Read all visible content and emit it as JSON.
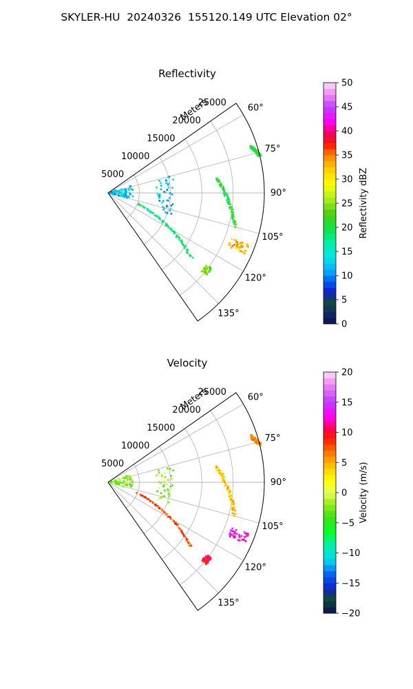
{
  "title": "SKYLER-HU  20240326  155120.149 UTC Elevation 02°",
  "chart_data": [
    {
      "type": "polar-sector",
      "title": "Reflectivity",
      "range_label": "Meters",
      "range_ticks": [
        5000,
        10000,
        15000,
        20000,
        25000
      ],
      "range_max": 25000,
      "azimuth_range_deg": [
        55,
        145
      ],
      "azimuth_ticks": [
        "60°",
        "75°",
        "90°",
        "105°",
        "120°",
        "135°"
      ],
      "grid": true,
      "colorbar": {
        "label": "Reflectivity dBZ",
        "min": 0,
        "max": 50,
        "ticks": [
          0,
          5,
          10,
          15,
          20,
          25,
          30,
          35,
          40,
          45,
          50
        ],
        "colormap": "pyart_HomeyerRainbow"
      },
      "echo_features": [
        {
          "kind": "near-field clutter cluster",
          "azimuth_deg": [
            70,
            105
          ],
          "range_m": [
            0,
            4000
          ],
          "value_dbz": 12
        },
        {
          "kind": "arc of echoes",
          "azimuth_deg": [
            75,
            110
          ],
          "range_m": [
            8000,
            10500
          ],
          "value_dbz": 12
        },
        {
          "kind": "diagonal line",
          "azimuth_deg": [
            110,
            128
          ],
          "range_m": [
            5000,
            17000
          ],
          "value_dbz": 18
        },
        {
          "kind": "line of echoes",
          "azimuth_deg": [
            82,
            105
          ],
          "range_m": [
            17500,
            21000
          ],
          "value_dbz": 21
        },
        {
          "kind": "strong cell",
          "azimuth_deg": [
            110,
            114
          ],
          "range_m": [
            21000,
            24000
          ],
          "value_dbz": 33
        },
        {
          "kind": "edge line",
          "azimuth_deg": [
            72,
            76
          ],
          "range_m": [
            24000,
            25000
          ],
          "value_dbz": 21
        },
        {
          "kind": "small cell",
          "azimuth_deg": [
            126,
            130
          ],
          "range_m": [
            19500,
            20500
          ],
          "value_dbz": 24
        }
      ]
    },
    {
      "type": "polar-sector",
      "title": "Velocity",
      "range_label": "Meters",
      "range_ticks": [
        5000,
        10000,
        15000,
        20000,
        25000
      ],
      "range_max": 25000,
      "azimuth_range_deg": [
        55,
        145
      ],
      "azimuth_ticks": [
        "60°",
        "75°",
        "90°",
        "105°",
        "120°",
        "135°"
      ],
      "grid": true,
      "colorbar": {
        "label": "Velocity (m/s)",
        "min": -20,
        "max": 20,
        "ticks": [
          -20,
          -15,
          -10,
          -5,
          0,
          5,
          10,
          15,
          20
        ],
        "colormap": "pyart_BuDRd18"
      },
      "echo_features": [
        {
          "kind": "near-field clutter cluster",
          "azimuth_deg": [
            70,
            105
          ],
          "range_m": [
            0,
            4000
          ],
          "value_ms": -2
        },
        {
          "kind": "arc of echoes",
          "azimuth_deg": [
            75,
            110
          ],
          "range_m": [
            8000,
            10500
          ],
          "value_ms": -2
        },
        {
          "kind": "diagonal line",
          "azimuth_deg": [
            110,
            128
          ],
          "range_m": [
            5000,
            17000
          ],
          "value_ms": 8
        },
        {
          "kind": "line of echoes",
          "azimuth_deg": [
            82,
            105
          ],
          "range_m": [
            17500,
            21000
          ],
          "value_ms": 4
        },
        {
          "kind": "strong cell",
          "azimuth_deg": [
            110,
            114
          ],
          "range_m": [
            21000,
            24000
          ],
          "value_ms": 13
        },
        {
          "kind": "edge line",
          "azimuth_deg": [
            72,
            76
          ],
          "range_m": [
            24000,
            25000
          ],
          "value_ms": 6
        },
        {
          "kind": "small cell",
          "azimuth_deg": [
            126,
            130
          ],
          "range_m": [
            19500,
            20500
          ],
          "value_ms": 10
        }
      ]
    }
  ]
}
